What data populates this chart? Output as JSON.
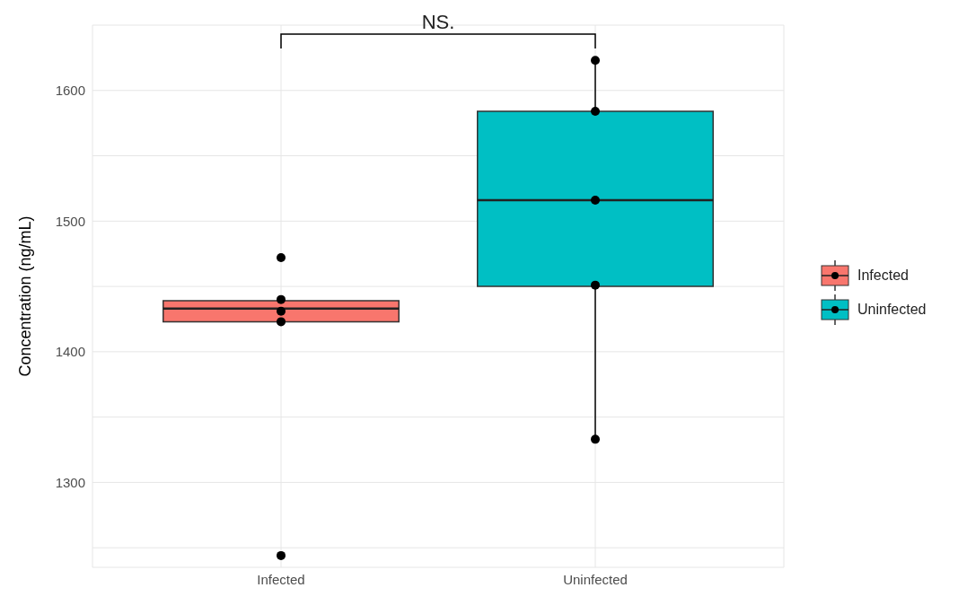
{
  "chart_data": {
    "type": "box",
    "ylabel": "Concentration (ng/mL)",
    "categories": [
      "Infected",
      "Uninfected"
    ],
    "series": [
      {
        "name": "Infected",
        "color": "#f8766d",
        "boxes": [
          {
            "low": 1423,
            "q1": 1423,
            "median": 1433,
            "q3": 1439,
            "high": 1439
          },
          null
        ]
      },
      {
        "name": "Uninfected",
        "color": "#00bfc4",
        "boxes": [
          null,
          {
            "low": 1333,
            "q1": 1450,
            "median": 1516,
            "q3": 1584,
            "high": 1623
          }
        ]
      },
      {
        "type": "scatter",
        "color": "#000000",
        "x": [
          "Infected",
          "Infected",
          "Infected",
          "Infected",
          "Infected",
          "Uninfected",
          "Uninfected",
          "Uninfected",
          "Uninfected",
          "Uninfected"
        ],
        "values": [
          1472,
          1440,
          1431,
          1423,
          1244,
          1623,
          1584,
          1516,
          1451,
          1333
        ]
      }
    ],
    "annotations": [
      "NS."
    ],
    "ylim": [
      1235,
      1650
    ],
    "yticks": [
      {
        "value": 1250,
        "label": null
      },
      1300,
      {
        "value": 1350,
        "label": null
      },
      1400,
      {
        "value": 1450,
        "label": null
      },
      1500,
      {
        "value": 1550,
        "label": null
      },
      1600
    ],
    "grid": true,
    "legend": "right",
    "marker": "circle"
  }
}
